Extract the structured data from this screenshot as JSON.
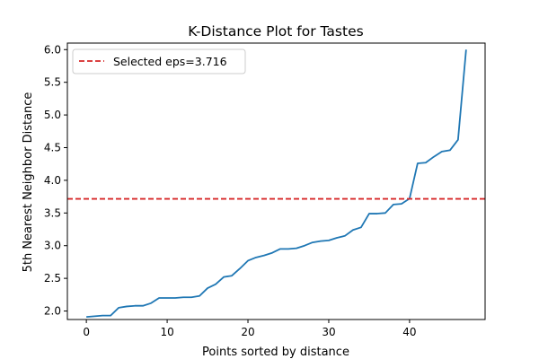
{
  "chart_data": {
    "type": "line",
    "title": "K-Distance Plot for Tastes",
    "xlabel": "Points sorted by distance",
    "ylabel": "5th Nearest Neighbor Distance",
    "xlim": [
      -2.35,
      49.35
    ],
    "ylim": [
      1.87,
      6.1
    ],
    "xticks": [
      0,
      10,
      20,
      30,
      40
    ],
    "yticks": [
      2.0,
      2.5,
      3.0,
      3.5,
      4.0,
      4.5,
      5.0,
      5.5,
      6.0
    ],
    "grid": false,
    "legend_position": "top-left",
    "series": [
      {
        "color": "#1f77b4",
        "x": [
          0,
          1,
          2,
          3,
          4,
          5,
          6,
          7,
          8,
          9,
          10,
          11,
          12,
          13,
          14,
          15,
          16,
          17,
          18,
          19,
          20,
          21,
          22,
          23,
          24,
          25,
          26,
          27,
          28,
          29,
          30,
          31,
          32,
          33,
          34,
          35,
          36,
          37,
          38,
          39,
          40,
          41,
          42,
          43,
          44,
          45,
          46,
          47
        ],
        "values": [
          1.91,
          1.92,
          1.93,
          1.93,
          2.05,
          2.07,
          2.08,
          2.08,
          2.12,
          2.2,
          2.2,
          2.2,
          2.21,
          2.21,
          2.23,
          2.35,
          2.41,
          2.52,
          2.54,
          2.65,
          2.77,
          2.82,
          2.85,
          2.89,
          2.95,
          2.95,
          2.96,
          3.0,
          3.05,
          3.07,
          3.08,
          3.12,
          3.15,
          3.24,
          3.28,
          3.49,
          3.49,
          3.5,
          3.63,
          3.64,
          3.72,
          4.26,
          4.27,
          4.36,
          4.44,
          4.46,
          4.62,
          6.0
        ]
      }
    ],
    "reference_line": {
      "orientation": "horizontal",
      "value": 3.716,
      "style": "dashed",
      "color": "#d62728",
      "label": "Selected eps=3.716"
    }
  }
}
